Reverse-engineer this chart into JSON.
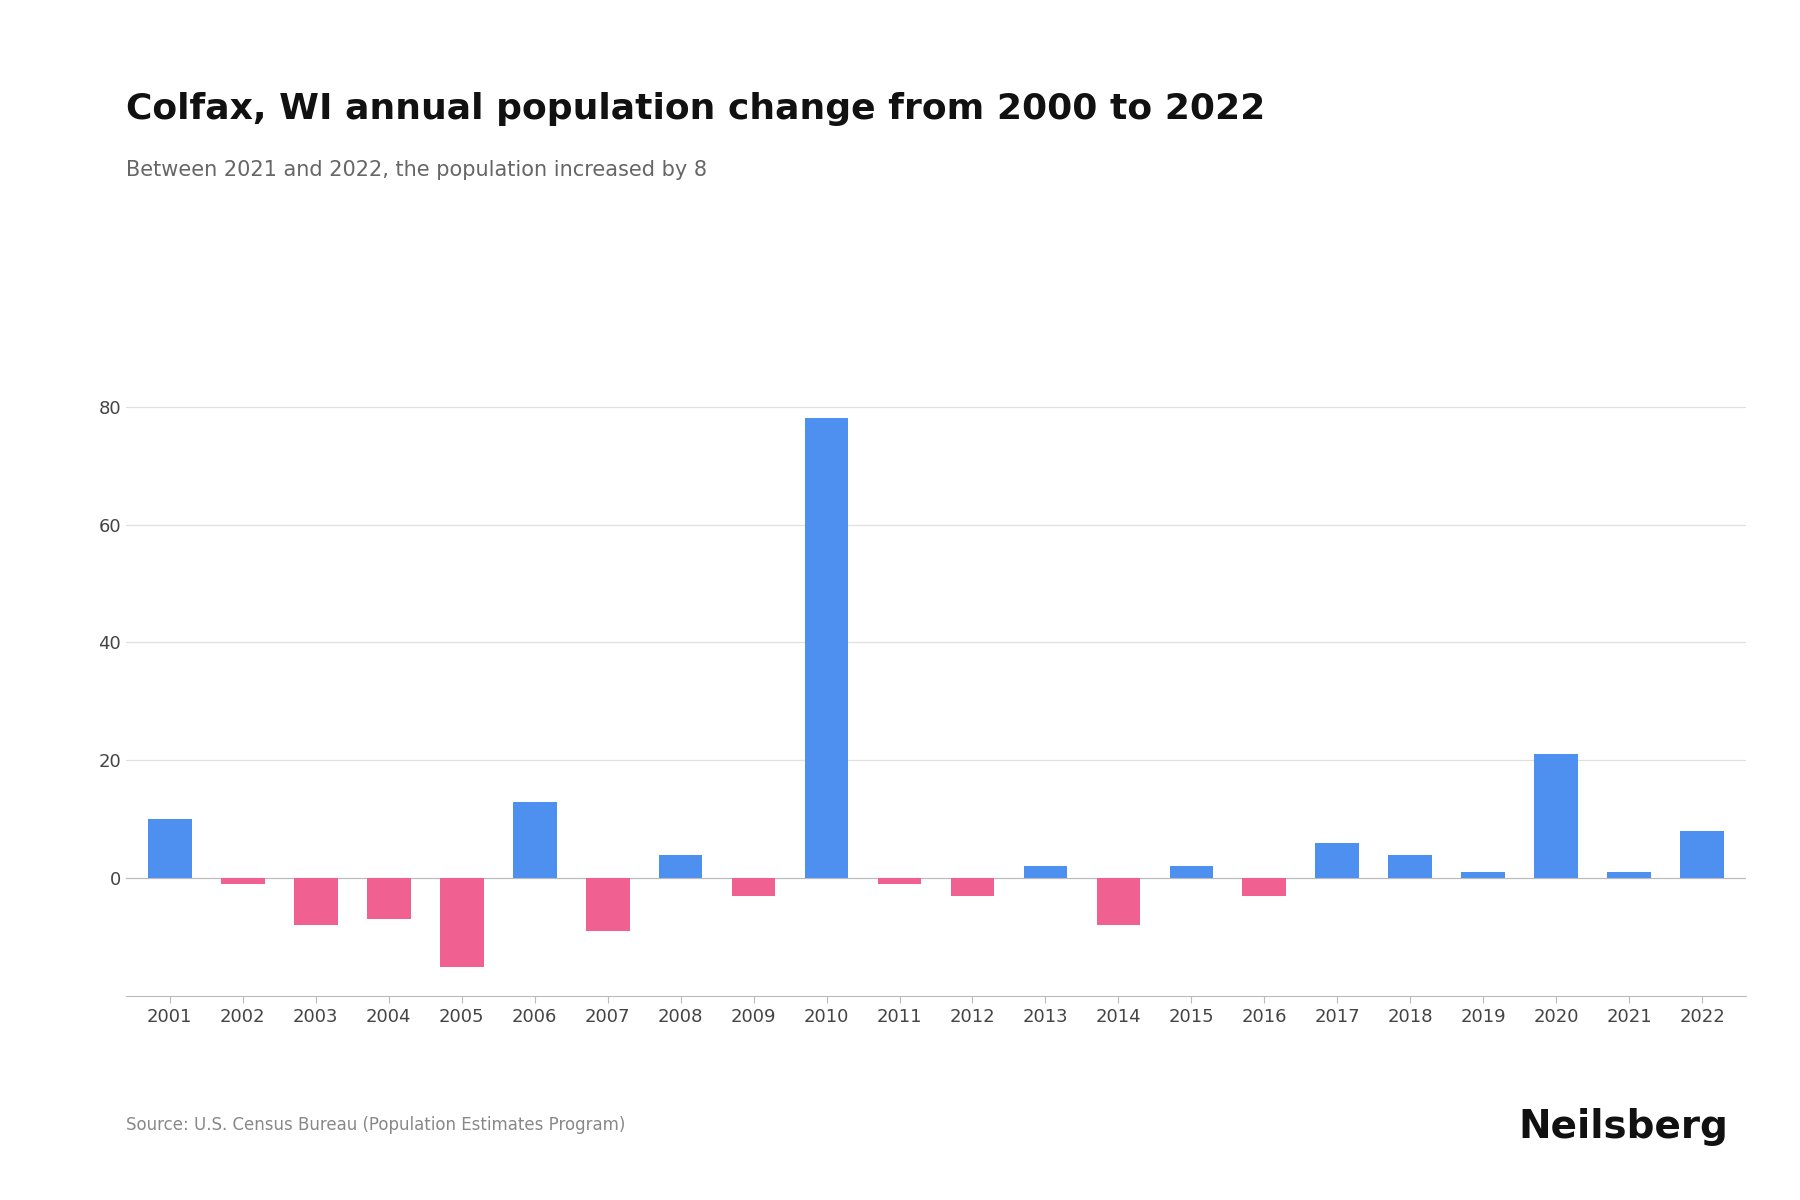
{
  "title": "Colfax, WI annual population change from 2000 to 2022",
  "subtitle": "Between 2021 and 2022, the population increased by 8",
  "source": "Source: U.S. Census Bureau (Population Estimates Program)",
  "branding": "Neilsberg",
  "years": [
    2001,
    2002,
    2003,
    2004,
    2005,
    2006,
    2007,
    2008,
    2009,
    2010,
    2011,
    2012,
    2013,
    2014,
    2015,
    2016,
    2017,
    2018,
    2019,
    2020,
    2021,
    2022
  ],
  "values": [
    10,
    -1,
    -8,
    -7,
    -15,
    13,
    -9,
    4,
    -3,
    78,
    -1,
    -3,
    2,
    -8,
    2,
    -3,
    6,
    4,
    1,
    21,
    1,
    8
  ],
  "positive_color": "#4d90f0",
  "negative_color": "#f06090",
  "background_color": "#ffffff",
  "title_fontsize": 26,
  "subtitle_fontsize": 15,
  "tick_fontsize": 13,
  "source_fontsize": 12,
  "branding_fontsize": 28,
  "ylim": [
    -20,
    92
  ],
  "yticks": [
    0,
    20,
    40,
    60,
    80
  ]
}
